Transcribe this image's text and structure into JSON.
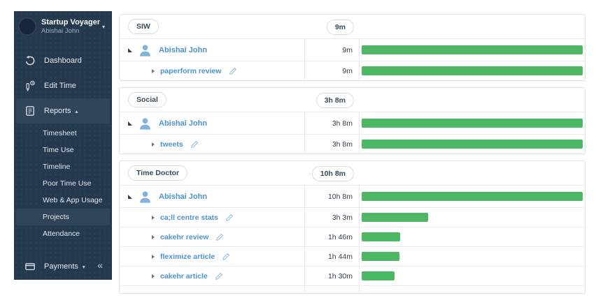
{
  "sidebar": {
    "company": "Startup Voyager",
    "user": "Abishai John",
    "dashboard": "Dashboard",
    "edit_time": "Edit Time",
    "reports": "Reports",
    "reports_children": [
      "Timesheet",
      "Time Use",
      "Timeline",
      "Poor Time Use",
      "Web & App Usage",
      "Projects",
      "Attendance"
    ],
    "selected_child": "Projects",
    "payments": "Payments",
    "collapse_glyph": "«"
  },
  "colors": {
    "sidebar_bg": "#24384e",
    "sidebar_highlight": "#31455a",
    "link_blue": "#4a93d0",
    "bar_green": "#4db863",
    "pill_border": "#d8dce1"
  },
  "groups": [
    {
      "name": "SIW",
      "total": "9m",
      "rows": [
        {
          "type": "user",
          "label": "Abishai John",
          "time": "9m",
          "bar_pct": 100
        },
        {
          "type": "task",
          "label": "paperform review",
          "time": "9m",
          "bar_pct": 100
        }
      ]
    },
    {
      "name": "Social",
      "total": "3h 8m",
      "rows": [
        {
          "type": "user",
          "label": "Abishai John",
          "time": "3h 8m",
          "bar_pct": 100
        },
        {
          "type": "task",
          "label": "tweets",
          "time": "3h 8m",
          "bar_pct": 100
        }
      ]
    },
    {
      "name": "Time Doctor",
      "total": "10h 8m",
      "rows": [
        {
          "type": "user",
          "label": "Abishai John",
          "time": "10h 8m",
          "bar_pct": 100
        },
        {
          "type": "task",
          "label": "ca;ll centre stats",
          "time": "3h 3m",
          "bar_pct": 30.1
        },
        {
          "type": "task",
          "label": "cakehr review",
          "time": "1h 46m",
          "bar_pct": 17.4
        },
        {
          "type": "task",
          "label": "fleximize article",
          "time": "1h 44m",
          "bar_pct": 17.1
        },
        {
          "type": "task",
          "label": "cakehr article",
          "time": "1h 30m",
          "bar_pct": 14.8
        }
      ]
    }
  ]
}
